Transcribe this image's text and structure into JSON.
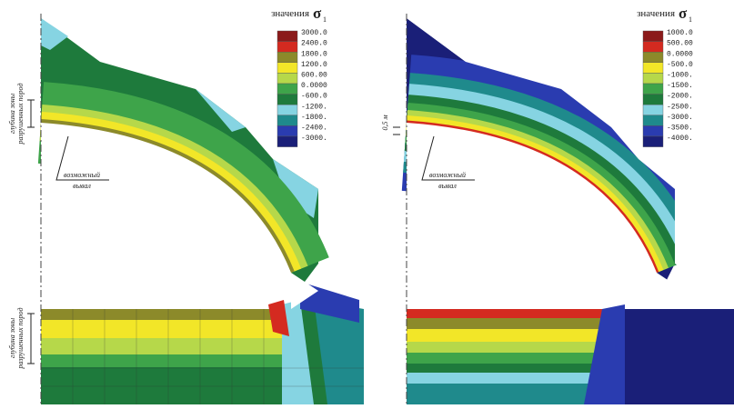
{
  "panels": [
    {
      "title": "значения",
      "symbol": "σ",
      "subscript": "1",
      "legend": {
        "labels": [
          "3000.0",
          "2400.0",
          "1800.0",
          "1200.0",
          "600.00",
          "0.0000",
          "-600.0",
          "-1200.",
          "-1800.",
          "-2400.",
          "-3000."
        ],
        "colors": [
          "#8b1a1a",
          "#d42a20",
          "#8c8a2a",
          "#f2e628",
          "#b6d84a",
          "#3ea44a",
          "#1e7a3c",
          "#86d4e2",
          "#1f8a8c",
          "#2a3cb0",
          "#1a1f78"
        ]
      },
      "annotations": {
        "depth_top": [
          "глубина зоны",
          "разрушенных пород"
        ],
        "depth_bottom": [
          "глубина зоны",
          "разрушенных пород"
        ],
        "callout": [
          "возможный",
          "вывал"
        ]
      }
    },
    {
      "title": "значения",
      "symbol": "σ",
      "subscript": "1",
      "legend": {
        "labels": [
          "1000.0",
          "500.00",
          "0.0000",
          "-500.0",
          "-1000.",
          "-1500.",
          "-2000.",
          "-2500.",
          "-3000.",
          "-3500.",
          "-4000."
        ],
        "colors": [
          "#8b1a1a",
          "#d42a20",
          "#8c8a2a",
          "#f2e628",
          "#b6d84a",
          "#3ea44a",
          "#1e7a3c",
          "#86d4e2",
          "#1f8a8c",
          "#2a3cb0",
          "#1a1f78"
        ]
      },
      "annotations": {
        "depth": "0,5 м",
        "callout": [
          "возможный",
          "вывал"
        ]
      }
    }
  ]
}
